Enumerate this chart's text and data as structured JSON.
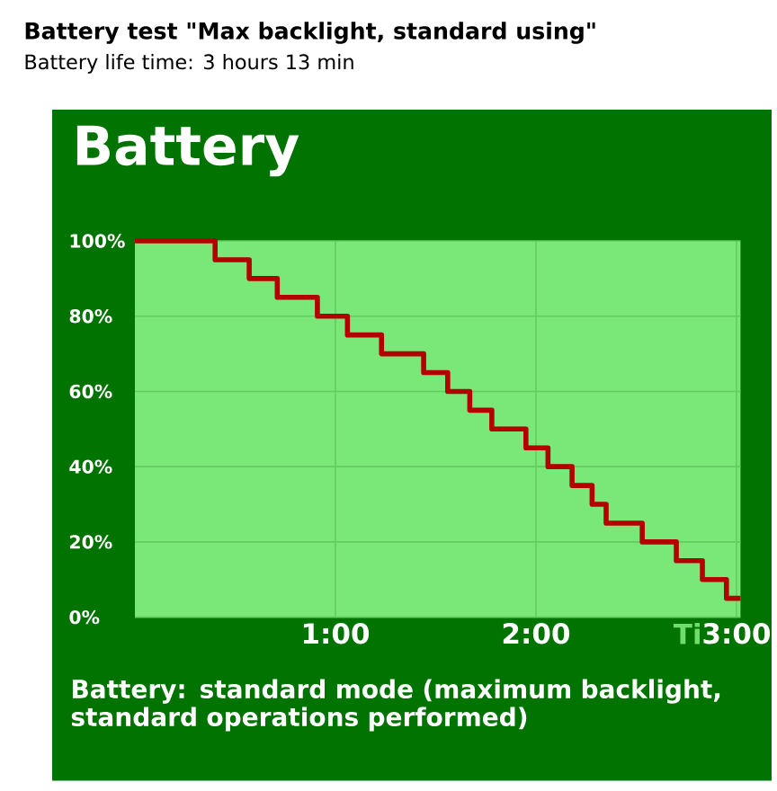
{
  "chart_data": {
    "type": "step",
    "title": "Battery test \"Max backlight, standard using\"",
    "subtitle": "Battery life time: 3 hours 13 min",
    "xlabel": "Ti",
    "annotations": [
      "Battery",
      "Battery: standard mode (maximum backlight, standard operations performed)"
    ],
    "x": [
      0,
      0.4,
      0.57,
      0.71,
      0.91,
      1.06,
      1.23,
      1.44,
      1.56,
      1.67,
      1.78,
      1.95,
      2.06,
      2.18,
      2.28,
      2.35,
      2.53,
      2.7,
      2.83,
      2.95,
      3.02
    ],
    "values": [
      100,
      95,
      90,
      85,
      80,
      75,
      70,
      65,
      60,
      55,
      50,
      45,
      40,
      35,
      30,
      25,
      20,
      15,
      10,
      5,
      5
    ],
    "color": "#b40000",
    "xlim": [
      0,
      3.02
    ],
    "ylim": [
      0,
      100
    ],
    "xticks": [
      {
        "value": 1,
        "label": "1:00"
      },
      {
        "value": 2,
        "label": "2:00"
      },
      {
        "value": 3,
        "label": "3:00"
      }
    ],
    "yticks": [
      {
        "value": 0,
        "label": "0%"
      },
      {
        "value": 20,
        "label": "20%"
      },
      {
        "value": 40,
        "label": "40%"
      },
      {
        "value": 60,
        "label": "60%"
      },
      {
        "value": 80,
        "label": "80%"
      },
      {
        "value": 100,
        "label": "100%"
      }
    ],
    "grid": true
  }
}
